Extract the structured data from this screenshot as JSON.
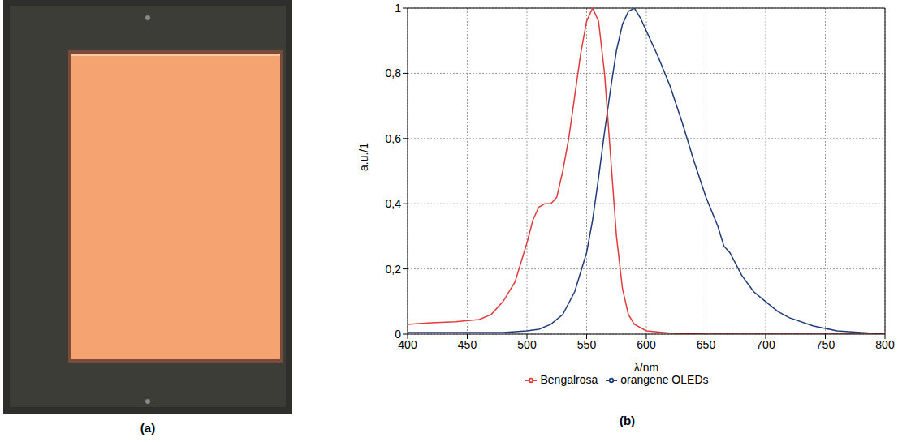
{
  "photo": {
    "label": "(a)"
  },
  "chart_data": {
    "type": "line",
    "panel_label": "(b)",
    "x_label": "λ/nm",
    "y_label": "a.u./1",
    "xlim": [
      400,
      800
    ],
    "xticks": [
      400,
      450,
      500,
      550,
      600,
      650,
      700,
      750,
      800
    ],
    "ylim": [
      0,
      1
    ],
    "yticks": [
      0,
      {
        "value": 0.2,
        "label": "0,2"
      },
      {
        "value": 0.4,
        "label": "0,4"
      },
      {
        "value": 0.6,
        "label": "0,6"
      },
      {
        "value": 0.8,
        "label": "0,8"
      },
      1
    ],
    "grid": true,
    "legend": "bottom",
    "series": [
      {
        "name": "orangene OLEDs",
        "color": "#1f3b78",
        "x": [
          400,
          450,
          480,
          500,
          510,
          520,
          530,
          540,
          550,
          555,
          560,
          565,
          570,
          575,
          580,
          585,
          590,
          595,
          600,
          610,
          620,
          630,
          640,
          650,
          660,
          665,
          670,
          680,
          690,
          700,
          710,
          720,
          740,
          760,
          780,
          800
        ],
        "values": [
          0.005,
          0.005,
          0.005,
          0.01,
          0.015,
          0.03,
          0.06,
          0.13,
          0.25,
          0.35,
          0.48,
          0.62,
          0.75,
          0.87,
          0.95,
          0.99,
          1.0,
          0.97,
          0.93,
          0.85,
          0.76,
          0.65,
          0.53,
          0.42,
          0.33,
          0.27,
          0.25,
          0.18,
          0.13,
          0.1,
          0.07,
          0.05,
          0.025,
          0.01,
          0.005,
          0
        ]
      },
      {
        "name": "Bengalrosa",
        "color": "#e23b3b",
        "x": [
          400,
          420,
          440,
          460,
          470,
          480,
          490,
          500,
          505,
          510,
          515,
          520,
          525,
          530,
          535,
          540,
          545,
          550,
          555,
          560,
          565,
          570,
          575,
          580,
          585,
          590,
          600,
          620,
          650,
          700,
          750,
          800
        ],
        "values": [
          0.03,
          0.035,
          0.038,
          0.045,
          0.06,
          0.1,
          0.16,
          0.28,
          0.35,
          0.39,
          0.4,
          0.4,
          0.42,
          0.5,
          0.6,
          0.73,
          0.86,
          0.96,
          1.0,
          0.96,
          0.8,
          0.55,
          0.3,
          0.14,
          0.06,
          0.03,
          0.01,
          0.003,
          0,
          0,
          0,
          0
        ]
      }
    ]
  }
}
